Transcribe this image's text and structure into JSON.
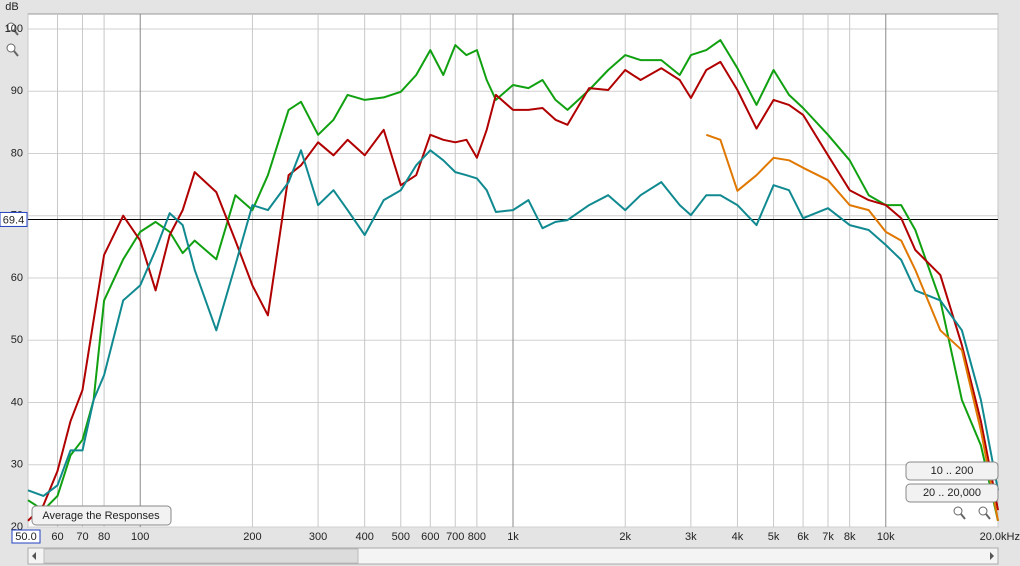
{
  "chart_data": {
    "type": "line",
    "y_label": "dB",
    "log_x": true,
    "grid": true,
    "xlim": [
      50,
      20000
    ],
    "ylim": [
      20,
      102.4
    ],
    "xticks": [
      {
        "value": 50,
        "label": "50.0"
      },
      60,
      70,
      80,
      100,
      200,
      300,
      400,
      500,
      600,
      700,
      800,
      {
        "value": 1000,
        "label": "1k"
      },
      {
        "value": 2000,
        "label": "2k"
      },
      {
        "value": 3000,
        "label": "3k"
      },
      {
        "value": 4000,
        "label": "4k"
      },
      {
        "value": 5000,
        "label": "5k"
      },
      {
        "value": 6000,
        "label": "6k"
      },
      {
        "value": 7000,
        "label": "7k"
      },
      {
        "value": 8000,
        "label": "8k"
      },
      {
        "value": 10000,
        "label": "10k"
      },
      {
        "value": 20000,
        "label": "20.0kHz"
      }
    ],
    "yticks": [
      20,
      30,
      40,
      50,
      60,
      70,
      80,
      90,
      100
    ],
    "cursor": {
      "value": 69.4
    },
    "x": [
      50,
      55,
      60,
      65,
      70,
      75,
      80,
      90,
      100,
      110,
      120,
      130,
      140,
      160,
      180,
      200,
      220,
      250,
      270,
      300,
      330,
      360,
      400,
      450,
      500,
      550,
      600,
      650,
      700,
      750,
      800,
      850,
      900,
      1000,
      1100,
      1200,
      1300,
      1400,
      1600,
      1800,
      2000,
      2200,
      2500,
      2800,
      3000,
      3300,
      3600,
      4000,
      4500,
      5000,
      5500,
      6000,
      7000,
      8000,
      9000,
      10000,
      11000,
      12000,
      14000,
      16000,
      18000,
      20000
    ],
    "series": [
      {
        "color": "#10a010",
        "values": [
          24.3,
          22.7,
          25,
          31.5,
          34,
          40.4,
          56.4,
          63,
          67.4,
          69,
          67.4,
          64,
          66,
          63,
          73.3,
          70.9,
          76.5,
          87,
          88.3,
          83,
          85.4,
          89.4,
          88.6,
          89,
          89.9,
          92.6,
          96.6,
          92.6,
          97.4,
          95.8,
          96.6,
          91.8,
          88.6,
          91,
          90.5,
          91.8,
          88.6,
          87,
          90.2,
          93.4,
          95.8,
          95,
          95,
          92.6,
          95.8,
          96.6,
          98.2,
          93.7,
          87.8,
          93.4,
          89.4,
          87.3,
          83,
          78.9,
          73.3,
          71.7,
          71.7,
          67.7,
          56.4,
          40.4,
          33.1,
          21
        ]
      },
      {
        "color": "#b00000",
        "values": [
          21,
          23.5,
          29,
          37,
          42,
          53.2,
          63.7,
          70,
          66,
          58,
          66.9,
          70.9,
          77,
          73.8,
          66,
          58.8,
          54,
          76.5,
          78.1,
          81.8,
          79.7,
          82.2,
          79.7,
          83.8,
          74.9,
          76.5,
          83,
          82.2,
          81.8,
          82.2,
          79.3,
          83.8,
          89.4,
          87,
          87,
          87.3,
          85.4,
          84.6,
          90.5,
          90.2,
          93.4,
          91.8,
          93.7,
          91.8,
          88.9,
          93.4,
          94.7,
          90.2,
          84,
          88.6,
          87.8,
          86.2,
          79.7,
          74.1,
          72.5,
          71.7,
          69.6,
          64.5,
          60.5,
          49.2,
          37,
          22.7
        ]
      },
      {
        "color": "#108a90",
        "values": [
          25.9,
          25,
          26.7,
          32.3,
          32.3,
          40.4,
          44.4,
          56.4,
          58.8,
          64.5,
          70.4,
          68.5,
          61.3,
          51.6,
          62.1,
          71.7,
          70.9,
          75.4,
          80.5,
          71.7,
          74.1,
          70.9,
          66.9,
          72.5,
          74.1,
          78.1,
          80.5,
          78.9,
          77,
          76.5,
          76,
          74.1,
          70.6,
          70.9,
          72.5,
          68,
          69,
          69.3,
          71.7,
          73.3,
          70.9,
          73.3,
          75.4,
          71.7,
          70.1,
          73.3,
          73.3,
          71.7,
          68.5,
          74.9,
          74.1,
          69.6,
          71.2,
          68.5,
          67.7,
          65.3,
          62.9,
          58,
          56.4,
          51.6,
          40.4,
          25.9
        ]
      },
      {
        "color": "#e07800",
        "values": [
          null,
          null,
          null,
          null,
          null,
          null,
          null,
          null,
          null,
          null,
          null,
          null,
          null,
          null,
          null,
          null,
          null,
          null,
          null,
          null,
          null,
          null,
          null,
          null,
          null,
          null,
          null,
          null,
          null,
          null,
          null,
          null,
          null,
          null,
          null,
          null,
          null,
          null,
          null,
          null,
          null,
          null,
          null,
          null,
          null,
          83,
          82.2,
          74,
          76.5,
          79.3,
          78.9,
          77.7,
          75.7,
          71.7,
          70.9,
          67.4,
          66,
          61.3,
          51.6,
          48.4,
          35.5,
          21
        ]
      }
    ]
  },
  "controls": {
    "average": "Average the Responses",
    "range_low": "10 .. 200",
    "range_full": "20 .. 20,000"
  }
}
